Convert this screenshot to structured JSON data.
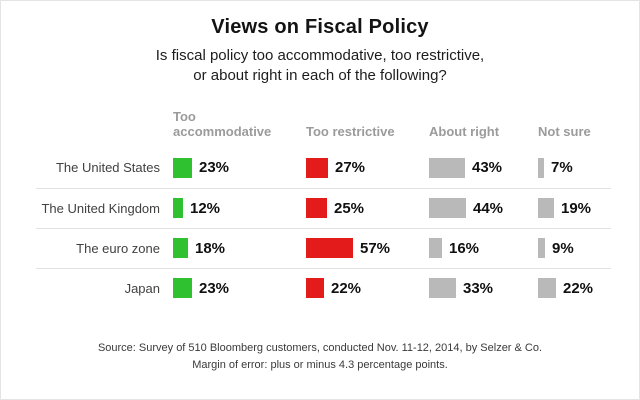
{
  "title": "Views on Fiscal Policy",
  "subtitle_line1": "Is fiscal policy too accommodative, too restrictive,",
  "subtitle_line2": "or about right in each of the following?",
  "chart_data": {
    "type": "bar",
    "orientation": "horizontal",
    "title": "Views on Fiscal Policy",
    "categories": [
      "The United States",
      "The United Kingdom",
      "The euro zone",
      "Japan"
    ],
    "series": [
      {
        "name": "Too accommodative",
        "color": "#2fc12f",
        "values": [
          23,
          12,
          18,
          23
        ]
      },
      {
        "name": "Too restrictive",
        "color": "#e31b1b",
        "values": [
          27,
          25,
          57,
          22
        ]
      },
      {
        "name": "About right",
        "color": "#b9b9b9",
        "values": [
          43,
          44,
          16,
          33
        ]
      },
      {
        "name": "Not sure",
        "color": "#b9b9b9",
        "values": [
          7,
          19,
          9,
          22
        ]
      }
    ],
    "value_suffix": "%",
    "xlim": [
      0,
      60
    ],
    "grid": false,
    "legend_position": "column-headers"
  },
  "footer": {
    "line1": "Source: Survey of 510 Bloomberg customers, conducted Nov. 11-12, 2014, by Selzer & Co.",
    "line2": "Margin of error: plus or minus 4.3 percentage points."
  }
}
